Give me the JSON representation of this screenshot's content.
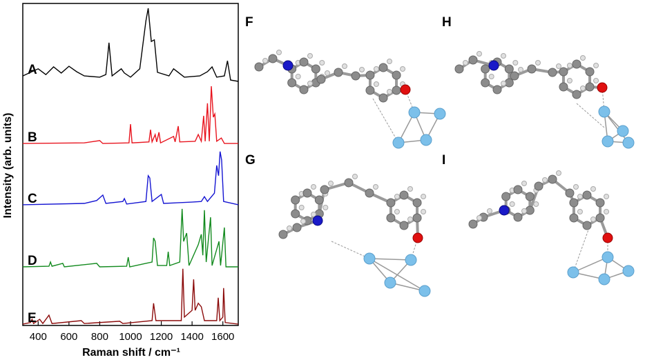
{
  "chart_data": {
    "type": "line",
    "xlabel": "Raman shift / cm⁻¹",
    "ylabel": "Intensity (arb. units)",
    "xlim": [
      300,
      1700
    ],
    "xticks": [
      400,
      600,
      800,
      1000,
      1200,
      1400,
      1600
    ],
    "ylim": [
      0,
      100
    ],
    "series": [
      {
        "name": "A",
        "color": "#000000",
        "x": [
          300,
          400,
          450,
          500,
          550,
          600,
          650,
          700,
          800,
          840,
          860,
          880,
          940,
          960,
          1000,
          1060,
          1100,
          1115,
          1135,
          1155,
          1175,
          1250,
          1280,
          1350,
          1450,
          1500,
          1530,
          1560,
          1610,
          1630,
          1650,
          1700
        ],
        "values": [
          77.5,
          79.7,
          77.9,
          80.3,
          78.4,
          80.5,
          78.8,
          77.5,
          77.1,
          77.9,
          87.8,
          77.5,
          79.7,
          78.4,
          77.1,
          79.7,
          94.6,
          98.5,
          88.2,
          88.7,
          78.6,
          77.5,
          79.7,
          77.1,
          77.5,
          78.8,
          80.3,
          77.1,
          77.5,
          82.2,
          76.2,
          75.8
        ]
      },
      {
        "name": "B",
        "color": "#e8141e",
        "x": [
          300,
          700,
          800,
          820,
          990,
          1000,
          1010,
          1120,
          1130,
          1140,
          1160,
          1170,
          1185,
          1195,
          1280,
          1290,
          1310,
          1320,
          1420,
          1440,
          1460,
          1475,
          1485,
          1500,
          1512,
          1525,
          1538,
          1548,
          1560,
          1590,
          1610,
          1700
        ],
        "values": [
          56.5,
          56.7,
          57.4,
          56.5,
          56.7,
          62.5,
          56.7,
          57.0,
          60.8,
          57.0,
          59.3,
          57.0,
          60.0,
          56.7,
          58.7,
          57.0,
          61.9,
          57.0,
          57.2,
          59.3,
          57.2,
          65.1,
          57.2,
          69.0,
          57.2,
          74.3,
          64.7,
          65.7,
          57.2,
          58.2,
          56.5,
          56.5
        ]
      },
      {
        "name": "C",
        "color": "#1414d2",
        "x": [
          300,
          700,
          780,
          820,
          840,
          950,
          960,
          975,
          1100,
          1115,
          1125,
          1140,
          1200,
          1215,
          1400,
          1460,
          1480,
          1500,
          1545,
          1560,
          1572,
          1582,
          1592,
          1605,
          1700
        ],
        "values": [
          37.5,
          37.9,
          38.8,
          40.5,
          37.9,
          38.5,
          39.4,
          37.7,
          38.5,
          46.5,
          45.8,
          38.5,
          40.7,
          37.9,
          38.3,
          38.5,
          40.0,
          38.5,
          41.1,
          49.7,
          46.5,
          54.0,
          51.4,
          38.5,
          37.5
        ]
      },
      {
        "name": "D",
        "color": "#128a1e",
        "x": [
          300,
          470,
          480,
          490,
          560,
          570,
          780,
          800,
          975,
          985,
          995,
          1140,
          1150,
          1160,
          1175,
          1235,
          1245,
          1255,
          1320,
          1335,
          1345,
          1365,
          1380,
          1440,
          1460,
          1470,
          1480,
          1492,
          1520,
          1530,
          1575,
          1585,
          1610,
          1620,
          1700
        ],
        "values": [
          18.2,
          18.4,
          19.7,
          18.4,
          19.3,
          18.2,
          19.3,
          18.2,
          18.4,
          21.2,
          18.2,
          19.7,
          27.2,
          26.1,
          18.6,
          18.6,
          22.9,
          18.6,
          19.7,
          36.2,
          26.1,
          28.7,
          18.6,
          25.1,
          28.3,
          21.8,
          35.8,
          19.7,
          33.6,
          18.6,
          26.1,
          18.6,
          30.4,
          18.2,
          18.2
        ]
      },
      {
        "name": "E",
        "color": "#8b0a0a",
        "x": [
          300,
          350,
          360,
          370,
          410,
          430,
          470,
          490,
          680,
          700,
          930,
          950,
          1140,
          1150,
          1165,
          1330,
          1340,
          1350,
          1400,
          1410,
          1420,
          1440,
          1460,
          1480,
          1560,
          1570,
          1580,
          1600,
          1605,
          1615,
          1700
        ],
        "values": [
          0.4,
          0.9,
          1.9,
          0.6,
          1.9,
          0.6,
          3.2,
          0.6,
          1.5,
          0.6,
          1.3,
          0.6,
          1.5,
          6.9,
          1.5,
          1.5,
          17.6,
          2.6,
          4.7,
          14.3,
          4.7,
          6.9,
          5.8,
          1.5,
          1.5,
          8.6,
          1.5,
          2.6,
          11.6,
          0.9,
          0.4
        ]
      }
    ]
  },
  "structures": {
    "labels": [
      "F",
      "H",
      "G",
      "I"
    ]
  }
}
